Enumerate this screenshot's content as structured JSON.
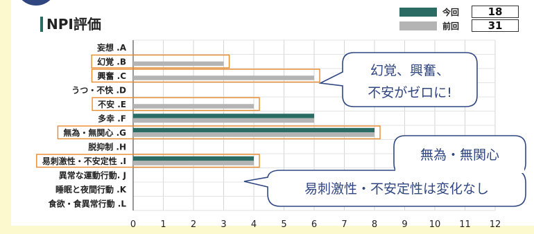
{
  "title": "NPI評価",
  "legend": [
    {
      "label": "今回",
      "value": "18",
      "color": "#2a6b63"
    },
    {
      "label": "前回",
      "value": "31",
      "color": "#b4b4b4"
    }
  ],
  "callouts": [
    {
      "lines": [
        "幻覚、興奮、",
        "不安がゼロに!"
      ]
    },
    {
      "lines": [
        "無為・無関心",
        "易刺激性・不安定性は変化なし"
      ]
    }
  ],
  "chart_data": {
    "type": "bar",
    "orientation": "horizontal",
    "title": "NPI評価",
    "categories": [
      "妄想 .A",
      "幻覚 .B",
      "興奮 .C",
      "うつ・不快 .D",
      "不安 .E",
      "多幸 .F",
      "無為・無関心 .G",
      "脱抑制 .H",
      "易刺激性・不安定性 .I",
      "異常な運動行動. J",
      "睡眠と夜間行動 .K",
      "食欲・食異常行動 .L"
    ],
    "highlighted": [
      "幻覚 .B",
      "興奮 .C",
      "不安 .E",
      "無為・無関心 .G",
      "易刺激性・不安定性 .I"
    ],
    "series": [
      {
        "name": "今回",
        "color": "#2a6b63",
        "values": [
          0,
          0,
          0,
          0,
          0,
          6,
          8,
          0,
          4,
          0,
          0,
          0
        ]
      },
      {
        "name": "前回",
        "color": "#b4b4b4",
        "values": [
          0,
          3,
          6,
          0,
          4,
          6,
          8,
          0,
          4,
          0,
          0,
          0
        ]
      }
    ],
    "xlim": [
      0,
      12
    ],
    "xticks": [
      0,
      1,
      2,
      3,
      4,
      5,
      6,
      7,
      8,
      9,
      10,
      11,
      12
    ],
    "grid": true,
    "legend_position": "top-right"
  }
}
